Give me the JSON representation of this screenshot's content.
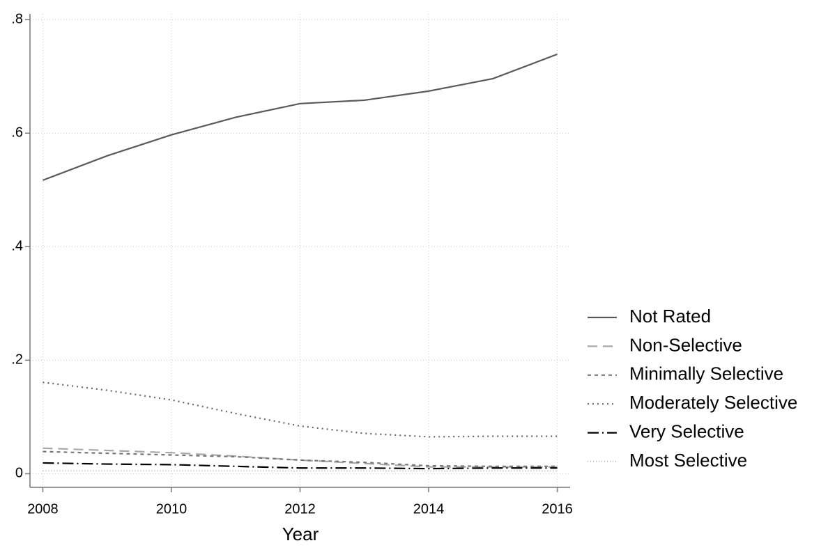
{
  "chart_data": {
    "type": "line",
    "x_label": "Year",
    "x": [
      2008,
      2009,
      2010,
      2011,
      2012,
      2013,
      2014,
      2015,
      2016
    ],
    "xlim": [
      2007.8,
      2016.2
    ],
    "xticks": [
      2008,
      2010,
      2012,
      2014,
      2016
    ],
    "ylim": [
      -0.024,
      0.81
    ],
    "yticks": [
      0,
      {
        "value": 0.2,
        "label": ".2"
      },
      {
        "value": 0.4,
        "label": ".4"
      },
      {
        "value": 0.6,
        "label": ".6"
      },
      {
        "value": 0.8,
        "label": ".8"
      }
    ],
    "grid": true,
    "legend": "right",
    "series": [
      {
        "name": "Not Rated",
        "color": "#5a5a5a",
        "style": "solid",
        "values": [
          0.517,
          0.56,
          0.597,
          0.628,
          0.652,
          0.658,
          0.674,
          0.696,
          0.739
        ]
      },
      {
        "name": "Non-Selective",
        "color": "#a8a8a8",
        "style": "dashed",
        "values": [
          0.045,
          0.041,
          0.037,
          0.031,
          0.024,
          0.018,
          0.012,
          0.012,
          0.012
        ]
      },
      {
        "name": "Minimally Selective",
        "color": "#777777",
        "style": "shortdash",
        "values": [
          0.039,
          0.036,
          0.033,
          0.03,
          0.024,
          0.02,
          0.014,
          0.013,
          0.013
        ]
      },
      {
        "name": "Moderately Selective",
        "color": "#666666",
        "style": "dotted",
        "values": [
          0.161,
          0.147,
          0.13,
          0.106,
          0.084,
          0.071,
          0.065,
          0.066,
          0.066
        ]
      },
      {
        "name": "Very Selective",
        "color": "#000000",
        "style": "dashdot",
        "values": [
          0.019,
          0.017,
          0.016,
          0.013,
          0.01,
          0.01,
          0.009,
          0.01,
          0.01
        ]
      },
      {
        "name": "Most Selective",
        "color": "#bbbbbb",
        "style": "finedot",
        "values": [
          0.005,
          0.005,
          0.005,
          0.005,
          0.005,
          0.005,
          0.005,
          0.005,
          0.005
        ]
      }
    ]
  }
}
